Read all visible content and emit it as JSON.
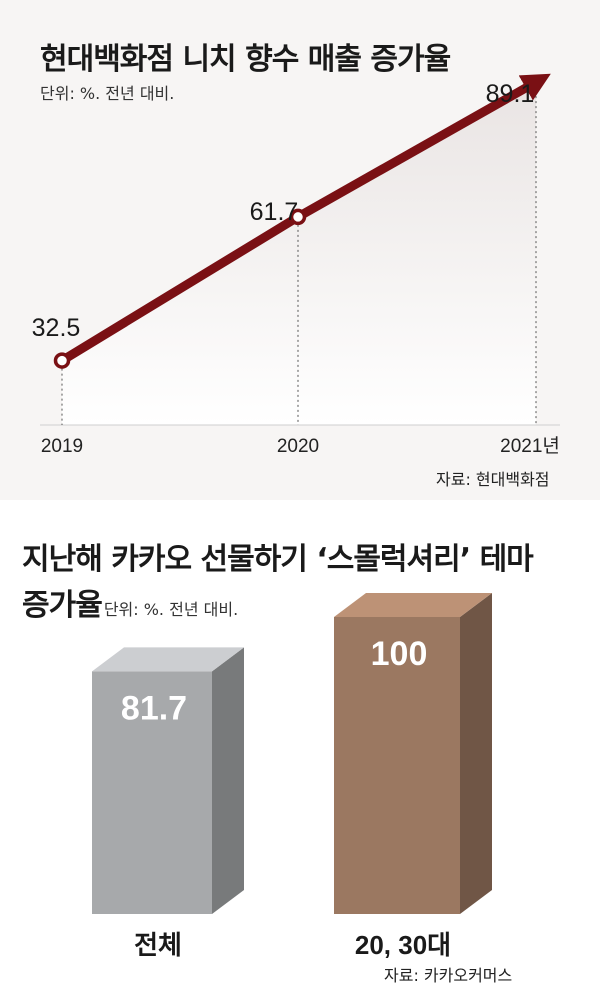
{
  "chart_data": [
    {
      "type": "line",
      "title": "현대백화점 니치 향수 매출 증가율",
      "subtitle": "단위: %. 전년 대비.",
      "categories": [
        "2019",
        "2020",
        "2021년"
      ],
      "series": [
        {
          "values": [
            32.5,
            61.7,
            89.1
          ]
        }
      ],
      "value_labels": [
        "32.5",
        "61.7",
        "89.1"
      ],
      "source": "자료: 현대백화점",
      "line_color": "#7a1014"
    },
    {
      "type": "bar",
      "title_line1": "지난해 카카오 선물하기 ‘스몰럭셔리’ 테마",
      "title_line2": "증가율",
      "subtitle": "단위: %. 전년 대비.",
      "categories": [
        "전체",
        "20, 30대"
      ],
      "values": [
        81.7,
        100
      ],
      "value_labels": [
        "81.7",
        "100"
      ],
      "source": "자료: 카카오커머스",
      "colors": [
        "#a7a9ab",
        "#9b7861"
      ]
    }
  ]
}
